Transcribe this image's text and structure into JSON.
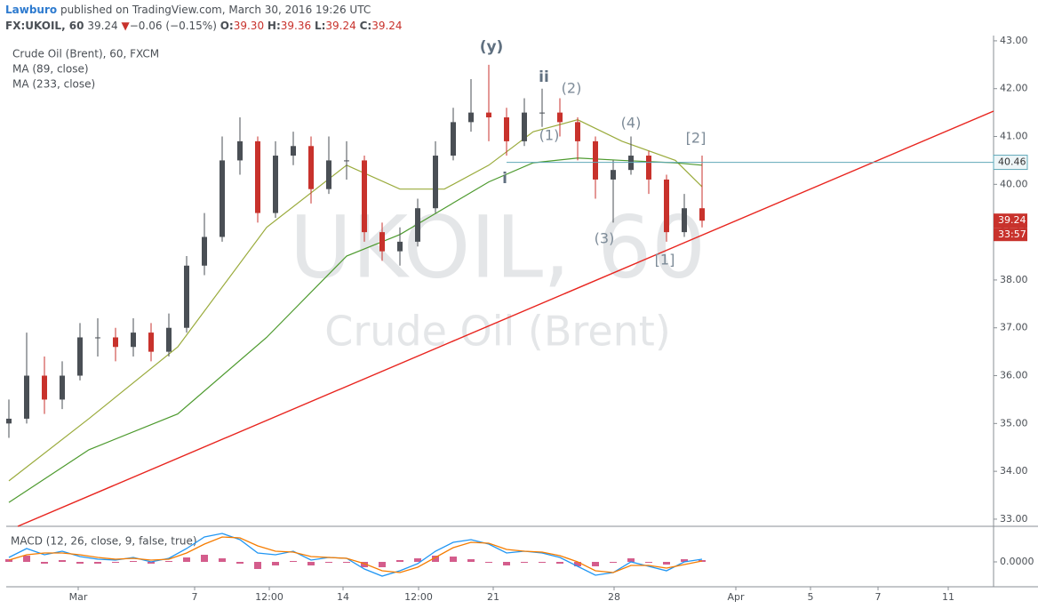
{
  "header": {
    "author": "Lawburo",
    "published": "published on TradingView.com, March 30, 2016 19:26 UTC",
    "symbol": "FX:UKOIL, 60",
    "last": "39.24",
    "arrow": "▼",
    "change": "−0.06 (−0.15%)",
    "o_label": "O:",
    "open": "39.30",
    "h_label": "H:",
    "high": "39.36",
    "l_label": "L:",
    "low": "39.24",
    "c_label": "C:",
    "close": "39.24"
  },
  "chart_data": {
    "type": "candlestick",
    "title": "Crude Oil (Brent), 60, FXCM",
    "watermark": "UKOIL, 60",
    "watermark_subtitle": "Crude Oil (Brent)",
    "up_color": "#4a4f55",
    "down_color": "#c8322c",
    "xlim": [
      -0.15,
      55.4
    ],
    "ylim": [
      32.85,
      43.11
    ],
    "xticks": [
      {
        "value": 3.9,
        "label": "Mar"
      },
      {
        "value": 10.45,
        "label": "7"
      },
      {
        "value": 14.65,
        "label": "12:00"
      },
      {
        "value": 18.8,
        "label": "14"
      },
      {
        "value": 23.05,
        "label": "12:00"
      },
      {
        "value": 27.25,
        "label": "21"
      },
      {
        "value": 34.05,
        "label": "28"
      },
      {
        "value": 40.9,
        "label": "Apr"
      },
      {
        "value": 45.1,
        "label": "5"
      },
      {
        "value": 48.9,
        "label": "7"
      },
      {
        "value": 52.85,
        "label": "11"
      }
    ],
    "yticks": [
      {
        "value": 33,
        "label": "33.00"
      },
      {
        "value": 34,
        "label": "34.00"
      },
      {
        "value": 35,
        "label": "35.00"
      },
      {
        "value": 36,
        "label": "36.00"
      },
      {
        "value": 37,
        "label": "37.00"
      },
      {
        "value": 38,
        "label": "38.00"
      },
      {
        "value": 39,
        "label": "39.00"
      },
      {
        "value": 40,
        "label": "40.00"
      },
      {
        "value": 41,
        "label": "41.00"
      },
      {
        "value": 42,
        "label": "42.00"
      },
      {
        "value": 43,
        "label": "43.00"
      }
    ],
    "candles": {
      "x": [
        0,
        1,
        2,
        3,
        4,
        5,
        6,
        7,
        8,
        9,
        10,
        11,
        12,
        13,
        14,
        15,
        16,
        17,
        18,
        19,
        20,
        21,
        22,
        23,
        24,
        25,
        26,
        27,
        28,
        29,
        30,
        31,
        32,
        33,
        34,
        35,
        36,
        37,
        38,
        39
      ],
      "open": [
        35.0,
        35.1,
        36.0,
        35.5,
        36.0,
        36.8,
        36.8,
        36.6,
        36.9,
        36.5,
        37.0,
        38.3,
        38.9,
        40.5,
        40.9,
        39.4,
        40.6,
        40.8,
        39.9,
        40.5,
        40.5,
        39.0,
        38.6,
        38.8,
        39.5,
        40.6,
        41.3,
        41.5,
        41.4,
        40.9,
        41.5,
        41.5,
        41.3,
        40.9,
        40.1,
        40.3,
        40.6,
        40.1,
        39.0,
        39.5
      ],
      "high": [
        35.5,
        36.9,
        36.4,
        36.3,
        37.1,
        37.2,
        37.0,
        37.2,
        37.1,
        37.3,
        38.5,
        39.4,
        41.0,
        41.4,
        41.0,
        40.9,
        41.1,
        41.0,
        41.0,
        40.9,
        40.6,
        39.2,
        39.1,
        39.7,
        40.9,
        41.6,
        42.2,
        42.5,
        41.6,
        41.8,
        42.0,
        41.8,
        41.4,
        41.0,
        40.5,
        41.0,
        40.7,
        40.2,
        39.8,
        40.6
      ],
      "low": [
        34.7,
        35.0,
        35.2,
        35.3,
        35.9,
        36.4,
        36.3,
        36.4,
        36.3,
        36.4,
        36.9,
        38.1,
        38.8,
        40.2,
        39.2,
        39.3,
        40.4,
        39.6,
        39.8,
        40.1,
        38.8,
        38.4,
        38.3,
        38.7,
        39.4,
        40.5,
        41.1,
        40.9,
        40.6,
        40.8,
        41.2,
        41.0,
        40.5,
        39.7,
        39.2,
        40.2,
        39.8,
        38.8,
        38.9,
        39.1
      ],
      "close": [
        35.1,
        36.0,
        35.5,
        36.0,
        36.8,
        36.8,
        36.6,
        36.9,
        36.5,
        37.0,
        38.3,
        38.9,
        40.5,
        40.9,
        39.4,
        40.6,
        40.8,
        39.9,
        40.5,
        40.5,
        39.0,
        38.6,
        38.8,
        39.5,
        40.6,
        41.3,
        41.5,
        41.4,
        40.9,
        41.5,
        41.5,
        41.3,
        40.9,
        40.1,
        40.3,
        40.6,
        40.1,
        39.0,
        39.5,
        39.24
      ]
    },
    "overlays": [
      {
        "name": "MA (89, close)",
        "color": "#9aab3c",
        "x": [
          0,
          4.5,
          9.5,
          14.5,
          19,
          22,
          24.5,
          27,
          29.5,
          32,
          34.5,
          37.5,
          39
        ],
        "values": [
          33.8,
          35.1,
          36.6,
          39.1,
          40.4,
          39.9,
          39.9,
          40.4,
          41.1,
          41.35,
          40.9,
          40.5,
          39.95
        ]
      },
      {
        "name": "MA (233, close)",
        "color": "#4d9a2e",
        "x": [
          0,
          4.5,
          9.5,
          14.5,
          19,
          22,
          24.5,
          27,
          29.5,
          32,
          34.5,
          37.5,
          39
        ],
        "values": [
          33.35,
          34.45,
          35.2,
          36.8,
          38.5,
          38.95,
          39.5,
          40.05,
          40.45,
          40.55,
          40.5,
          40.45,
          40.4
        ]
      }
    ],
    "trendline": {
      "color": "#e8251f",
      "x": [
        0.5,
        55.4
      ],
      "values": [
        32.85,
        41.53
      ]
    },
    "level": {
      "color": "#5fa8b8",
      "value": 40.46,
      "start_x": 28
    },
    "countdown": "33:57",
    "annotations": [
      "(y)",
      "ii",
      "(2)",
      "(1)",
      "i",
      "(4)",
      "[2]",
      "(3)",
      "[1]"
    ],
    "macd": {
      "title": "MACD (12, 26, close, 9, false, true)",
      "ylim": [
        -0.28,
        0.37
      ],
      "yticks": [
        {
          "value": 0,
          "label": "0.0000"
        }
      ],
      "x": [
        0,
        1,
        2,
        3,
        4,
        5,
        6,
        7,
        8,
        9,
        10,
        11,
        12,
        13,
        14,
        15,
        16,
        17,
        18,
        19,
        20,
        21,
        22,
        23,
        24,
        25,
        26,
        27,
        28,
        29,
        30,
        31,
        32,
        33,
        34,
        35,
        36,
        37,
        38,
        39
      ],
      "macd_color": "#2196f3",
      "signal_color": "#f57c00",
      "histogram_color": "#c2185b",
      "macd": [
        0.05,
        0.15,
        0.08,
        0.12,
        0.06,
        0.03,
        0.02,
        0.05,
        0.0,
        0.04,
        0.15,
        0.28,
        0.32,
        0.25,
        0.1,
        0.08,
        0.12,
        0.02,
        0.05,
        0.04,
        -0.08,
        -0.16,
        -0.1,
        -0.02,
        0.12,
        0.22,
        0.25,
        0.2,
        0.1,
        0.12,
        0.1,
        0.05,
        -0.05,
        -0.15,
        -0.12,
        0.0,
        -0.05,
        -0.1,
        0.0,
        0.03
      ],
      "signal": [
        0.02,
        0.08,
        0.1,
        0.1,
        0.08,
        0.05,
        0.03,
        0.04,
        0.02,
        0.03,
        0.1,
        0.2,
        0.28,
        0.27,
        0.18,
        0.12,
        0.11,
        0.06,
        0.05,
        0.04,
        -0.02,
        -0.1,
        -0.12,
        -0.06,
        0.05,
        0.16,
        0.22,
        0.21,
        0.14,
        0.12,
        0.11,
        0.07,
        0.0,
        -0.1,
        -0.12,
        -0.04,
        -0.04,
        -0.07,
        -0.03,
        0.01
      ],
      "histogram": [
        0.03,
        0.07,
        -0.02,
        0.02,
        -0.02,
        -0.02,
        -0.01,
        0.01,
        -0.02,
        0.01,
        0.05,
        0.08,
        0.04,
        -0.02,
        -0.08,
        -0.04,
        0.01,
        -0.04,
        0,
        0,
        -0.06,
        -0.06,
        0.02,
        0.04,
        0.07,
        0.06,
        0.03,
        -0.01,
        -0.04,
        0,
        -0.01,
        -0.02,
        -0.05,
        -0.05,
        0,
        0.04,
        -0.01,
        -0.03,
        0.03,
        0.02
      ]
    }
  }
}
